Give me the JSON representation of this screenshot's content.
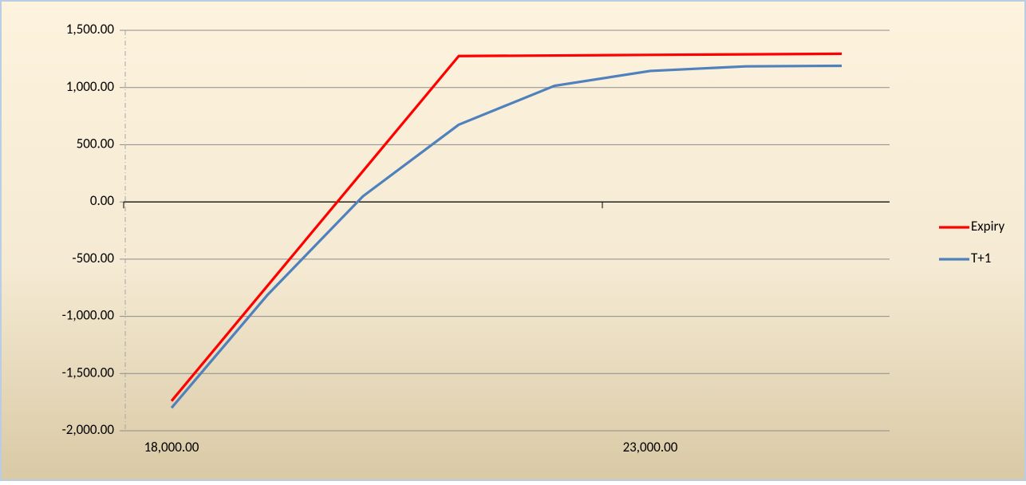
{
  "chart_data": {
    "type": "line",
    "categories": [
      "18,000.00",
      null,
      null,
      null,
      null,
      "23,000.00",
      null,
      null
    ],
    "series": [
      {
        "name": "Expiry",
        "color": "#ff0000",
        "values": [
          -1740,
          -735,
          270,
          1275,
          1280,
          1285,
          1290,
          1295
        ]
      },
      {
        "name": "T+1",
        "color": "#4f81bd",
        "values": [
          -1800,
          -815,
          50,
          675,
          1015,
          1145,
          1185,
          1190
        ]
      }
    ],
    "ylim": [
      -2000,
      1500
    ],
    "yticks": [
      {
        "value": -2000,
        "label": "-2,000.00"
      },
      {
        "value": -1500,
        "label": "-1,500.00"
      },
      {
        "value": -1000,
        "label": "-1,000.00"
      },
      {
        "value": -500,
        "label": "-500.00"
      },
      {
        "value": 0,
        "label": "0.00"
      },
      {
        "value": 500,
        "label": "500.00"
      },
      {
        "value": 1000,
        "label": "1,000.00"
      },
      {
        "value": 1500,
        "label": "1,500.00"
      }
    ],
    "grid": true,
    "legend": "right"
  }
}
